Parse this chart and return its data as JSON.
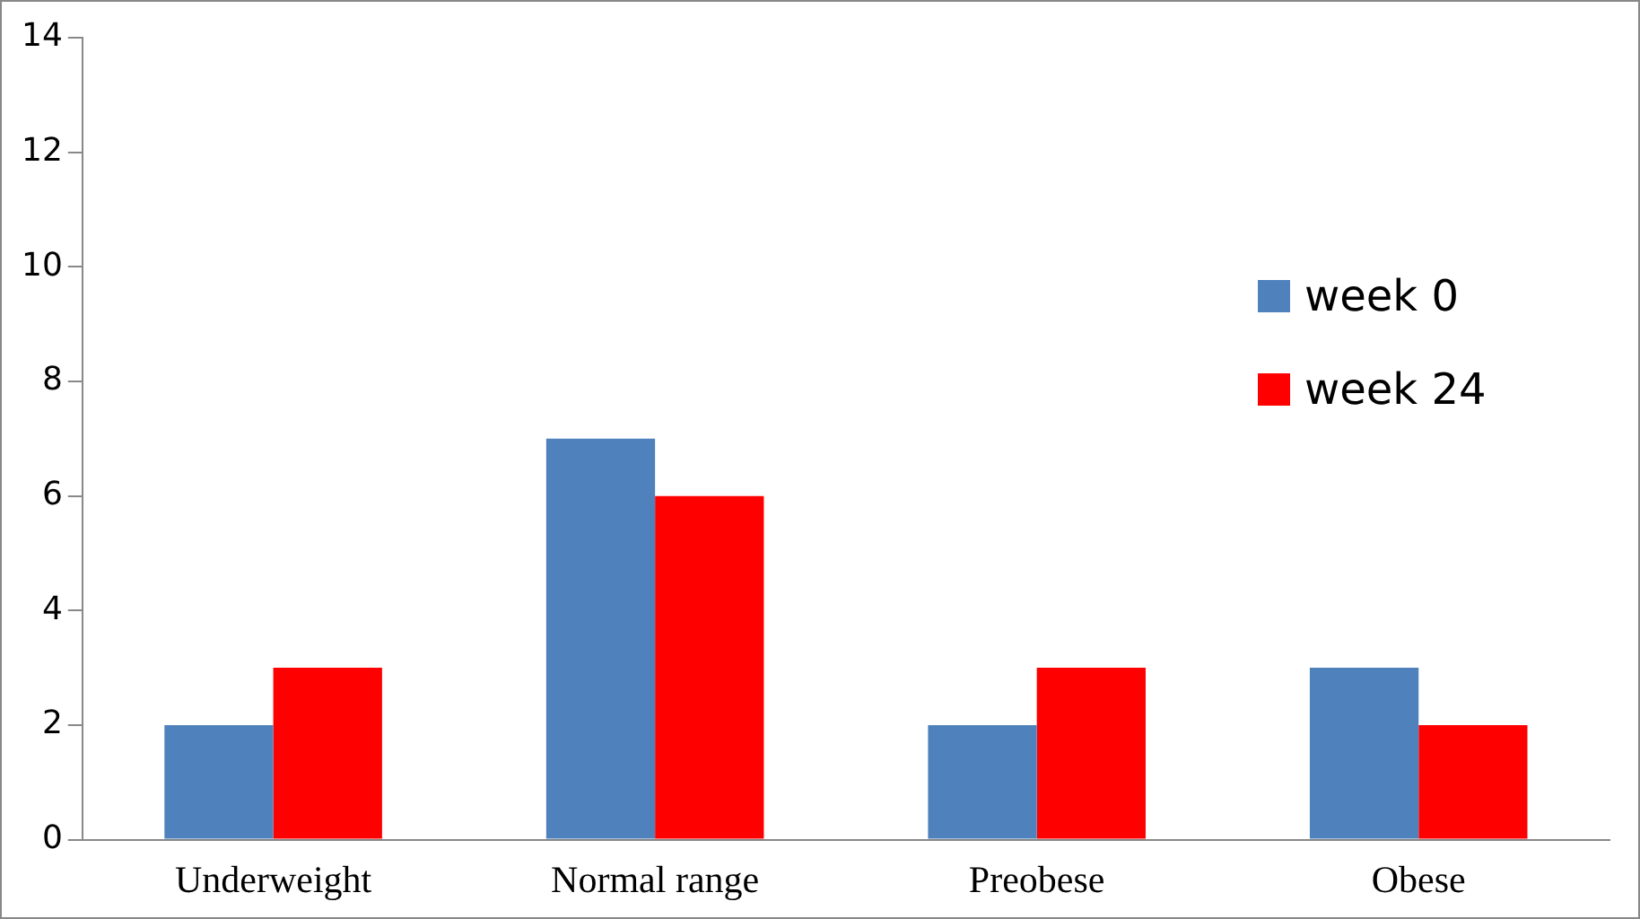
{
  "chart_data": {
    "type": "bar",
    "categories": [
      "Underweight",
      "Normal range",
      "Preobese",
      "Obese"
    ],
    "series": [
      {
        "name": "week 0",
        "color": "#4f81bd",
        "values": [
          2,
          7,
          2,
          3
        ]
      },
      {
        "name": "week 24",
        "color": "#ff0000",
        "values": [
          3,
          6,
          3,
          2
        ]
      }
    ],
    "ylim": [
      0,
      14
    ],
    "yticks": [
      0,
      2,
      4,
      6,
      8,
      10,
      12,
      14
    ],
    "grid": false,
    "legend": "right"
  }
}
